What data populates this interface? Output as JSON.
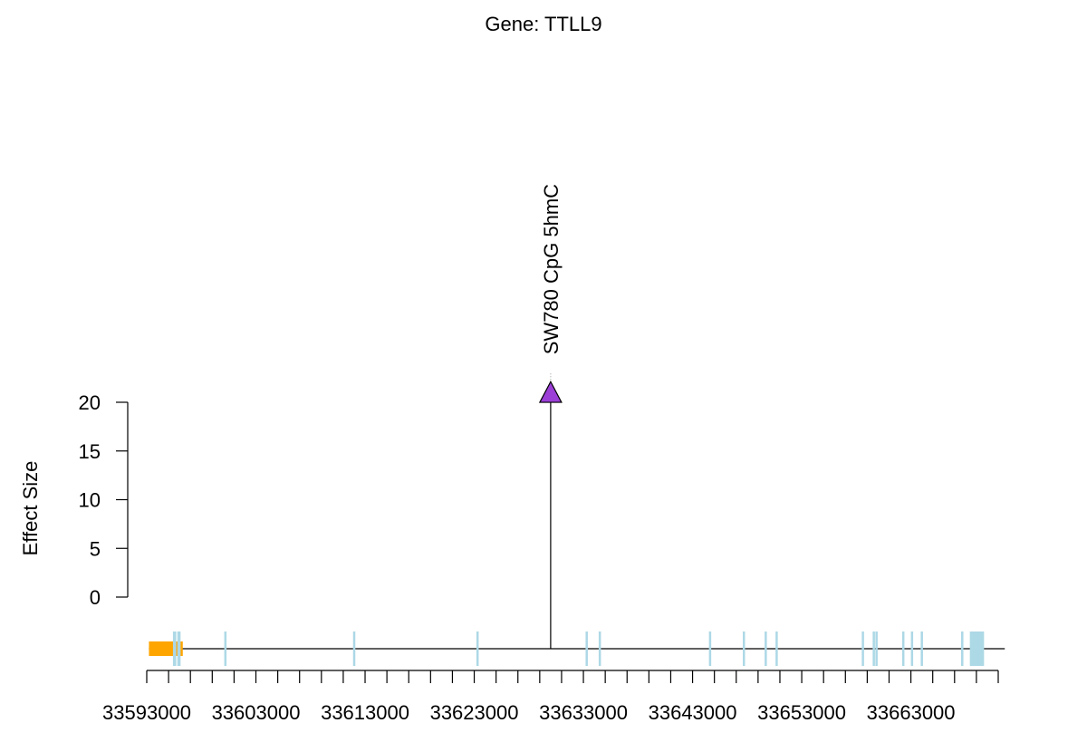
{
  "chart_data": {
    "type": "scatter",
    "title": "Gene: TTLL9",
    "xlabel": "",
    "ylabel": "Effect Size",
    "y_ticks": [
      "0",
      "5",
      "10",
      "15",
      "20"
    ],
    "ylim": [
      0,
      20
    ],
    "xlim": [
      33593000,
      33671000
    ],
    "x_tick_labels": [
      "33593000",
      "33603000",
      "33613000",
      "33623000",
      "33633000",
      "33643000",
      "33653000",
      "33663000"
    ],
    "x_minor_tick_step": 2000,
    "points": [
      {
        "x": 33630000,
        "y": 21,
        "label": "SW780 CpG 5hmC",
        "color": "#9b3fd6",
        "marker": "triangle"
      }
    ],
    "gene_track": {
      "start": 33593200,
      "end": 33671600,
      "promoter": {
        "start": 33593200,
        "end": 33596300,
        "color": "#ffa500"
      },
      "exon_color": "#add8e6",
      "exons": [
        {
          "start": 33595400,
          "end": 33595700
        },
        {
          "start": 33595800,
          "end": 33596100
        },
        {
          "start": 33600100,
          "end": 33600300
        },
        {
          "start": 33611900,
          "end": 33612100
        },
        {
          "start": 33623200,
          "end": 33623400
        },
        {
          "start": 33633200,
          "end": 33633400
        },
        {
          "start": 33634400,
          "end": 33634600
        },
        {
          "start": 33644500,
          "end": 33644700
        },
        {
          "start": 33647600,
          "end": 33647800
        },
        {
          "start": 33649600,
          "end": 33649800
        },
        {
          "start": 33650600,
          "end": 33650800
        },
        {
          "start": 33658500,
          "end": 33658700
        },
        {
          "start": 33659500,
          "end": 33659700
        },
        {
          "start": 33659750,
          "end": 33659950
        },
        {
          "start": 33662200,
          "end": 33662400
        },
        {
          "start": 33663000,
          "end": 33663200
        },
        {
          "start": 33663900,
          "end": 33664100
        },
        {
          "start": 33667600,
          "end": 33667800
        },
        {
          "start": 33668400,
          "end": 33669700
        }
      ]
    }
  }
}
